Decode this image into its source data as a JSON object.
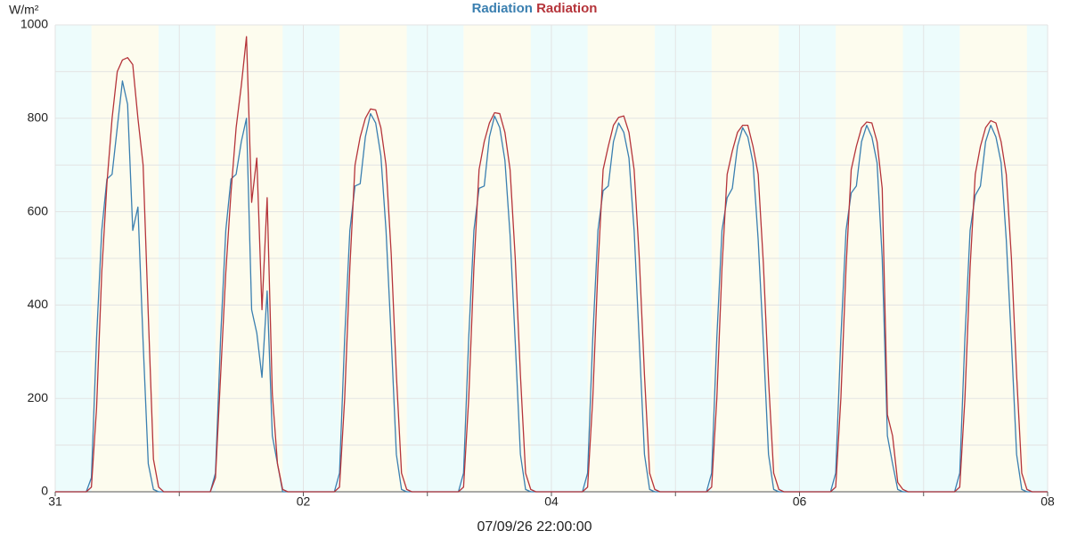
{
  "chart_data": {
    "type": "line",
    "y_unit": "W/m²",
    "xlabel": "07/09/26 22:00:00",
    "xlim": [
      0,
      192
    ],
    "xticks": [
      {
        "value": 0,
        "label": "31"
      },
      {
        "value": 24,
        "label": null
      },
      {
        "value": 48,
        "label": "02"
      },
      {
        "value": 72,
        "label": null
      },
      {
        "value": 96,
        "label": "04"
      },
      {
        "value": 120,
        "label": null
      },
      {
        "value": 144,
        "label": "06"
      },
      {
        "value": 168,
        "label": null
      },
      {
        "value": 192,
        "label": "08"
      }
    ],
    "ylim": [
      0,
      1000
    ],
    "yticks": [
      0,
      {
        "value": 100,
        "label": null
      },
      200,
      {
        "value": 300,
        "label": null
      },
      400,
      {
        "value": 500,
        "label": null
      },
      600,
      {
        "value": 700,
        "label": null
      },
      800,
      {
        "value": 900,
        "label": null
      },
      1000
    ],
    "grid": true,
    "daylight_hours": [
      7,
      20
    ],
    "day_color": "#fdfcee",
    "night_color": "#edfcfc",
    "x": [
      0,
      6,
      7,
      8,
      9,
      10,
      11,
      12,
      13,
      14,
      15,
      16,
      17,
      18,
      19,
      20,
      21,
      30,
      31,
      32,
      33,
      34,
      35,
      36,
      37,
      38,
      39,
      40,
      41,
      42,
      43,
      44,
      45,
      54,
      55,
      56,
      57,
      58,
      59,
      60,
      61,
      62,
      63,
      64,
      65,
      66,
      67,
      68,
      69,
      78,
      79,
      80,
      81,
      82,
      83,
      84,
      85,
      86,
      87,
      88,
      89,
      90,
      91,
      92,
      93,
      102,
      103,
      104,
      105,
      106,
      107,
      108,
      109,
      110,
      111,
      112,
      113,
      114,
      115,
      116,
      117,
      126,
      127,
      128,
      129,
      130,
      131,
      132,
      133,
      134,
      135,
      136,
      137,
      138,
      139,
      140,
      141,
      150,
      151,
      152,
      153,
      154,
      155,
      156,
      157,
      158,
      159,
      160,
      161,
      162,
      163,
      164,
      165,
      174,
      175,
      176,
      177,
      178,
      179,
      180,
      181,
      182,
      183,
      184,
      185,
      186,
      187,
      188,
      189,
      192
    ],
    "series": [
      {
        "name": "Radiation",
        "color": "#3a7fb0",
        "values": [
          0,
          0,
          30,
          330,
          560,
          670,
          680,
          780,
          880,
          830,
          560,
          610,
          320,
          60,
          5,
          0,
          0,
          0,
          40,
          330,
          560,
          670,
          680,
          750,
          800,
          390,
          340,
          245,
          430,
          120,
          60,
          0,
          0,
          0,
          40,
          330,
          560,
          655,
          660,
          760,
          810,
          790,
          720,
          560,
          330,
          80,
          5,
          0,
          0,
          0,
          40,
          330,
          560,
          650,
          655,
          760,
          805,
          780,
          710,
          550,
          320,
          80,
          5,
          0,
          0,
          0,
          40,
          330,
          560,
          645,
          655,
          750,
          790,
          770,
          715,
          560,
          320,
          80,
          5,
          0,
          0,
          0,
          40,
          330,
          560,
          630,
          650,
          740,
          780,
          760,
          705,
          540,
          320,
          80,
          5,
          0,
          0,
          0,
          40,
          330,
          560,
          640,
          655,
          750,
          785,
          760,
          705,
          500,
          120,
          60,
          5,
          0,
          0,
          0,
          40,
          330,
          560,
          635,
          655,
          750,
          785,
          760,
          705,
          540,
          320,
          80,
          5,
          0,
          0,
          0
        ]
      },
      {
        "name": "Radiation",
        "color": "#b5343a",
        "values": [
          0,
          0,
          10,
          180,
          470,
          660,
          800,
          900,
          925,
          930,
          915,
          800,
          700,
          380,
          70,
          10,
          0,
          0,
          30,
          250,
          470,
          640,
          780,
          870,
          975,
          620,
          715,
          390,
          630,
          210,
          60,
          5,
          0,
          0,
          10,
          200,
          480,
          700,
          760,
          800,
          820,
          818,
          780,
          700,
          510,
          250,
          40,
          5,
          0,
          0,
          10,
          200,
          480,
          690,
          750,
          790,
          812,
          810,
          770,
          690,
          500,
          250,
          40,
          5,
          0,
          0,
          10,
          200,
          480,
          690,
          740,
          785,
          802,
          805,
          770,
          690,
          500,
          250,
          40,
          5,
          0,
          0,
          10,
          200,
          480,
          680,
          730,
          770,
          785,
          785,
          740,
          680,
          490,
          240,
          40,
          5,
          0,
          0,
          10,
          200,
          480,
          690,
          740,
          780,
          792,
          790,
          750,
          650,
          165,
          120,
          20,
          5,
          0,
          0,
          10,
          200,
          480,
          680,
          740,
          780,
          795,
          790,
          750,
          680,
          500,
          250,
          40,
          5,
          0,
          0
        ]
      }
    ]
  }
}
